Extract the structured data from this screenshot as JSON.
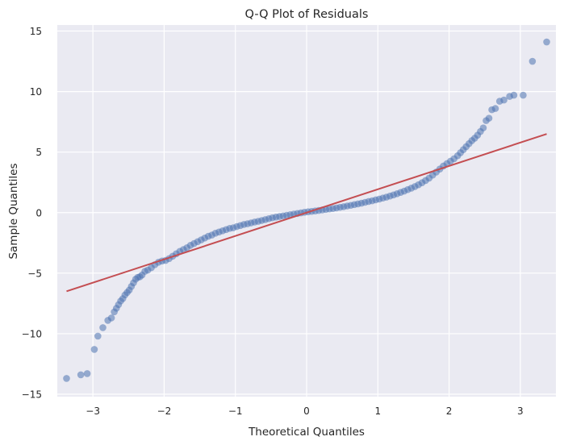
{
  "chart_data": {
    "type": "scatter",
    "title": "Q-Q Plot of Residuals",
    "xlabel": "Theoretical Quantiles",
    "ylabel": "Sample Quantiles",
    "xlim": [
      -3.5,
      3.5
    ],
    "ylim": [
      -15.2,
      15.5
    ],
    "xticks": [
      -3,
      -2,
      -1,
      0,
      1,
      2,
      3
    ],
    "xtick_labels": [
      "−3",
      "−2",
      "−1",
      "0",
      "1",
      "2",
      "3"
    ],
    "yticks": [
      -15,
      -10,
      -5,
      0,
      5,
      10,
      15
    ],
    "ytick_labels": [
      "−15",
      "−10",
      "−5",
      "0",
      "5",
      "10",
      "15"
    ],
    "grid": true,
    "style": "seaborn-darkgrid",
    "colors": {
      "background": "#eaeaf2",
      "grid": "#ffffff",
      "points": "#4c72b0",
      "line": "#c44e52"
    },
    "reference_line": {
      "x": [
        -3.37,
        3.37
      ],
      "y": [
        -6.5,
        6.5
      ]
    },
    "series": [
      {
        "x": [
          -3.37,
          -3.17,
          -3.08,
          -2.98,
          -2.93,
          -2.86,
          -2.79,
          -2.74,
          -2.7,
          -2.67,
          -2.64,
          -2.61,
          -2.58,
          -2.55,
          -2.52,
          -2.49,
          -2.46,
          -2.43,
          -2.4,
          -2.37,
          -2.34,
          -2.31,
          -2.27,
          -2.23,
          -2.18,
          -2.13,
          -2.08,
          -2.03,
          -1.98,
          -1.93,
          -1.88,
          -1.83,
          -1.78,
          -1.73,
          -1.68,
          -1.63,
          -1.58,
          -1.53,
          -1.48,
          -1.43,
          -1.38,
          -1.33,
          -1.28,
          -1.23,
          -1.18,
          -1.13,
          -1.08,
          -1.03,
          -0.98,
          -0.93,
          -0.88,
          -0.83,
          -0.78,
          -0.73,
          -0.68,
          -0.63,
          -0.58,
          -0.53,
          -0.48,
          -0.43,
          -0.38,
          -0.33,
          -0.28,
          -0.23,
          -0.18,
          -0.13,
          -0.08,
          -0.03,
          0.02,
          0.07,
          0.12,
          0.17,
          0.22,
          0.27,
          0.32,
          0.37,
          0.42,
          0.47,
          0.52,
          0.57,
          0.62,
          0.67,
          0.72,
          0.77,
          0.82,
          0.87,
          0.92,
          0.97,
          1.02,
          1.07,
          1.12,
          1.17,
          1.22,
          1.27,
          1.32,
          1.37,
          1.42,
          1.47,
          1.52,
          1.57,
          1.62,
          1.67,
          1.72,
          1.77,
          1.82,
          1.87,
          1.92,
          1.97,
          2.02,
          2.07,
          2.12,
          2.16,
          2.2,
          2.24,
          2.28,
          2.32,
          2.36,
          2.4,
          2.44,
          2.48,
          2.52,
          2.56,
          2.6,
          2.65,
          2.71,
          2.77,
          2.85,
          2.91,
          3.04,
          3.17,
          3.37
        ],
        "y": [
          -13.7,
          -13.4,
          -13.3,
          -11.3,
          -10.2,
          -9.5,
          -8.9,
          -8.7,
          -8.2,
          -7.9,
          -7.6,
          -7.3,
          -7.1,
          -6.8,
          -6.6,
          -6.4,
          -6.1,
          -5.8,
          -5.5,
          -5.35,
          -5.3,
          -5.15,
          -4.85,
          -4.75,
          -4.55,
          -4.3,
          -4.1,
          -4.0,
          -3.95,
          -3.8,
          -3.6,
          -3.4,
          -3.2,
          -3.05,
          -2.9,
          -2.7,
          -2.55,
          -2.4,
          -2.25,
          -2.1,
          -1.95,
          -1.85,
          -1.7,
          -1.6,
          -1.5,
          -1.4,
          -1.3,
          -1.25,
          -1.15,
          -1.07,
          -0.98,
          -0.92,
          -0.85,
          -0.78,
          -0.72,
          -0.65,
          -0.58,
          -0.5,
          -0.43,
          -0.37,
          -0.32,
          -0.27,
          -0.22,
          -0.17,
          -0.12,
          -0.07,
          -0.02,
          0.03,
          0.07,
          0.1,
          0.14,
          0.18,
          0.22,
          0.26,
          0.3,
          0.34,
          0.39,
          0.44,
          0.49,
          0.55,
          0.6,
          0.66,
          0.72,
          0.78,
          0.85,
          0.92,
          0.98,
          1.05,
          1.12,
          1.2,
          1.28,
          1.37,
          1.46,
          1.56,
          1.67,
          1.78,
          1.9,
          2.02,
          2.15,
          2.3,
          2.47,
          2.65,
          2.85,
          3.1,
          3.35,
          3.6,
          3.85,
          4.05,
          4.25,
          4.45,
          4.7,
          4.95,
          5.2,
          5.45,
          5.7,
          5.95,
          6.15,
          6.4,
          6.7,
          7.0,
          7.6,
          7.8,
          8.5,
          8.6,
          9.2,
          9.3,
          9.6,
          9.7,
          9.7,
          12.5,
          14.1
        ]
      }
    ]
  }
}
